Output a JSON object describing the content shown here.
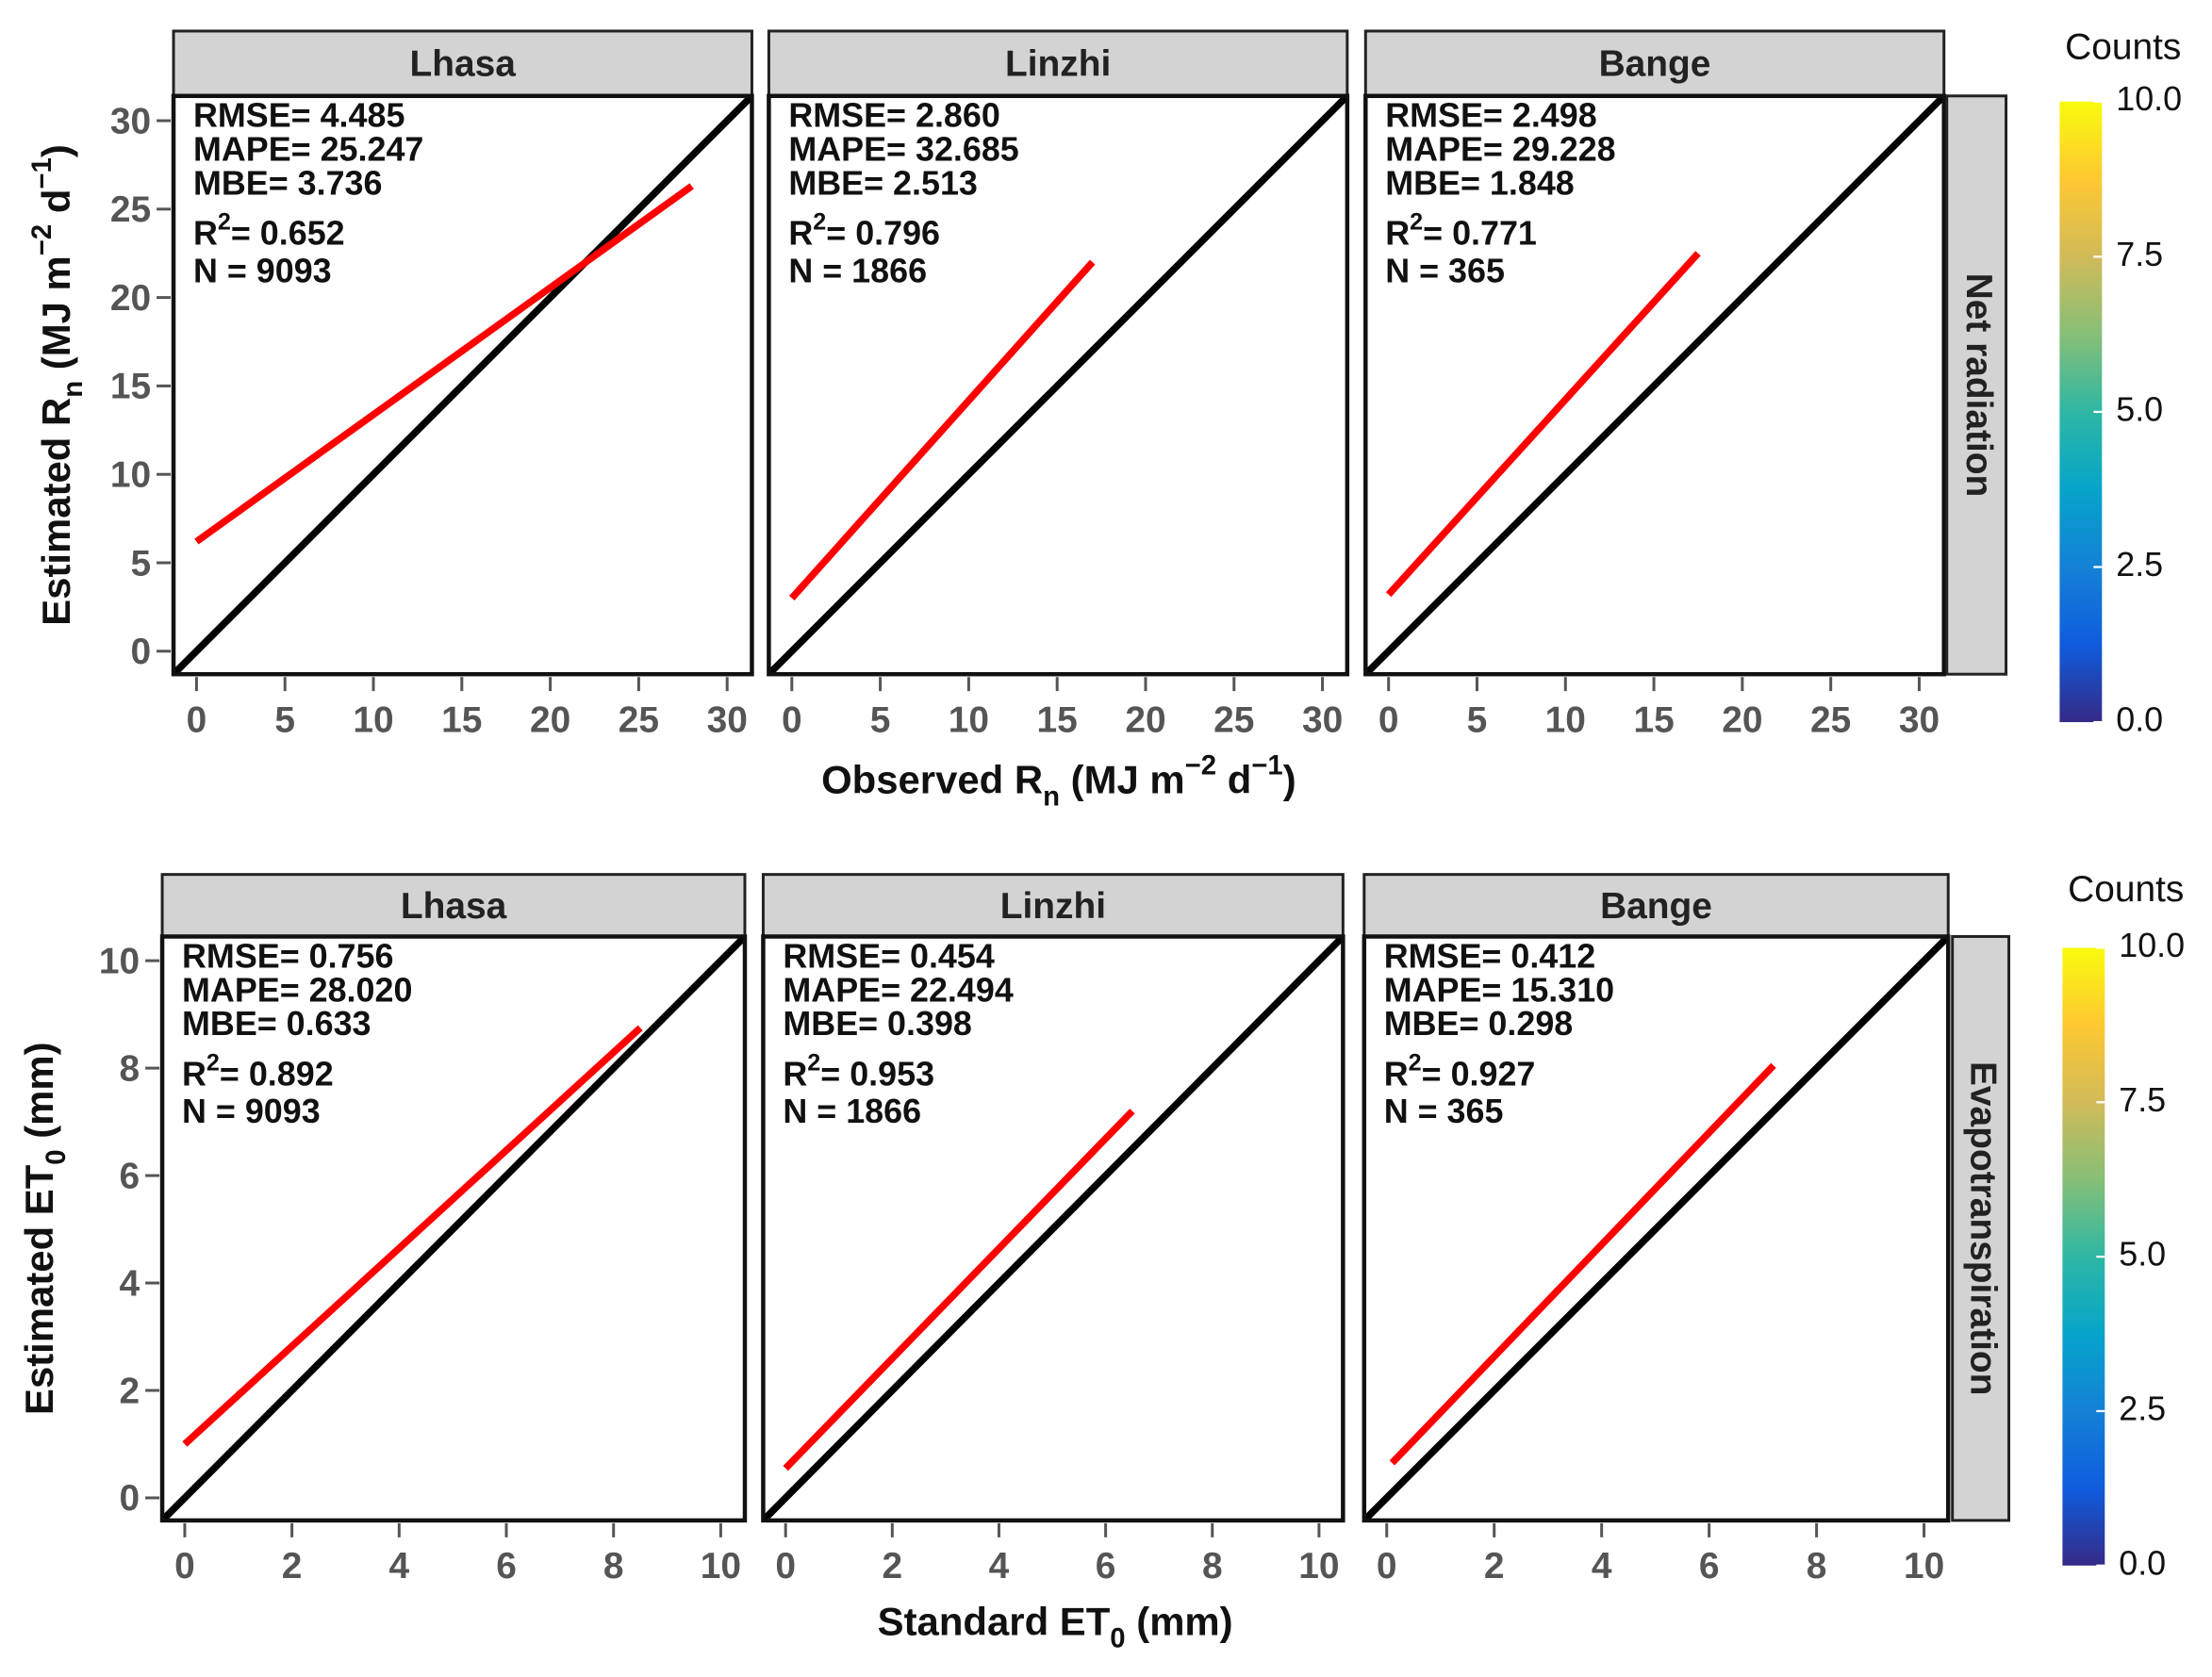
{
  "chart_data": [
    {
      "type": "scatter",
      "row_label": "Net radiation",
      "xlabel": [
        {
          "text": "Observed R"
        },
        {
          "text": "n",
          "shift": "sub"
        },
        {
          "text": " (MJ m"
        },
        {
          "text": "−2",
          "shift": "super"
        },
        {
          "text": " d"
        },
        {
          "text": "−1",
          "shift": "super"
        },
        {
          "text": ")"
        }
      ],
      "ylabel": [
        {
          "text": "Estimated R"
        },
        {
          "text": "n",
          "shift": "sub"
        },
        {
          "text": " (MJ m"
        },
        {
          "text": "−2",
          "shift": "super"
        },
        {
          "text": " d"
        },
        {
          "text": "−1",
          "shift": "super"
        },
        {
          "text": ")"
        }
      ],
      "xlim": [
        -1.3,
        31.4
      ],
      "ylim": [
        -1.3,
        31.4
      ],
      "xticks": [
        0,
        5,
        10,
        15,
        20,
        25,
        30
      ],
      "yticks": [
        0,
        5,
        10,
        15,
        20,
        25,
        30
      ],
      "colorbar": {
        "title": "Counts",
        "lim": [
          0,
          10
        ],
        "ticks": [
          {
            "value": 0,
            "label": "0.0"
          },
          2.5,
          {
            "value": 5,
            "label": "5.0"
          },
          7.5,
          {
            "value": 10,
            "label": "10.0"
          }
        ],
        "colors": [
          "#352a87",
          "#0f5cdd",
          "#1481d6",
          "#06a4ca",
          "#2eb7a4",
          "#87bf77",
          "#d1bb59",
          "#fec832",
          "#f9fb0e"
        ]
      },
      "panels": [
        {
          "title": "Lhasa",
          "annotations": [
            [
              {
                "text": "RMSE= 4.485"
              }
            ],
            [
              {
                "text": "MAPE= 25.247"
              }
            ],
            [
              {
                "text": "MBE= 3.736"
              }
            ],
            [
              {
                "text": "R"
              },
              {
                "text": "2",
                "shift": "super"
              },
              {
                "text": "= 0.652"
              }
            ],
            [
              {
                "text": "N = 9093"
              }
            ]
          ],
          "fit": {
            "x": [
              0,
              28
            ],
            "y": [
              6.2,
              26.3
            ],
            "color": "#ff0000"
          }
        },
        {
          "title": "Linzhi",
          "annotations": [
            [
              {
                "text": "RMSE=  2.860"
              }
            ],
            [
              {
                "text": "MAPE= 32.685"
              }
            ],
            [
              {
                "text": "MBE= 2.513"
              }
            ],
            [
              {
                "text": "R"
              },
              {
                "text": "2",
                "shift": "super"
              },
              {
                "text": "= 0.796"
              }
            ],
            [
              {
                "text": "N = 1866"
              }
            ]
          ],
          "fit": {
            "x": [
              0,
              17
            ],
            "y": [
              3,
              22
            ],
            "color": "#ff0000"
          }
        },
        {
          "title": "Bange",
          "annotations": [
            [
              {
                "text": "RMSE=  2.498"
              }
            ],
            [
              {
                "text": "MAPE= 29.228"
              }
            ],
            [
              {
                "text": "MBE= 1.848"
              }
            ],
            [
              {
                "text": "R"
              },
              {
                "text": "2",
                "shift": "super"
              },
              {
                "text": "= 0.771"
              }
            ],
            [
              {
                "text": "N = 365"
              }
            ]
          ],
          "fit": {
            "x": [
              0,
              17.5
            ],
            "y": [
              3.2,
              22.5
            ],
            "color": "#ff0000"
          }
        }
      ]
    },
    {
      "type": "scatter",
      "row_label": "Evapotranspiration",
      "xlabel": [
        {
          "text": "Standard ET"
        },
        {
          "text": "0",
          "shift": "sub"
        },
        {
          "text": " (mm)"
        }
      ],
      "ylabel": [
        {
          "text": "Estimated ET"
        },
        {
          "text": "0",
          "shift": "sub"
        },
        {
          "text": " (mm)"
        }
      ],
      "xlim": [
        -0.42,
        10.45
      ],
      "ylim": [
        -0.42,
        10.45
      ],
      "xticks": [
        0,
        2,
        4,
        6,
        8,
        10
      ],
      "yticks": [
        0,
        2,
        4,
        6,
        8,
        10
      ],
      "colorbar": {
        "title": "Counts",
        "lim": [
          0,
          10
        ],
        "ticks": [
          {
            "value": 0,
            "label": "0.0"
          },
          2.5,
          {
            "value": 5,
            "label": "5.0"
          },
          7.5,
          {
            "value": 10,
            "label": "10.0"
          }
        ],
        "colors": [
          "#352a87",
          "#0f5cdd",
          "#1481d6",
          "#06a4ca",
          "#2eb7a4",
          "#87bf77",
          "#d1bb59",
          "#fec832",
          "#f9fb0e"
        ]
      },
      "panels": [
        {
          "title": "Lhasa",
          "annotations": [
            [
              {
                "text": "RMSE= 0.756"
              }
            ],
            [
              {
                "text": "MAPE= 28.020"
              }
            ],
            [
              {
                "text": "MBE= 0.633"
              }
            ],
            [
              {
                "text": "R"
              },
              {
                "text": "2",
                "shift": "super"
              },
              {
                "text": "= 0.892"
              }
            ],
            [
              {
                "text": "N = 9093"
              }
            ]
          ],
          "fit": {
            "x": [
              0,
              8.5
            ],
            "y": [
              1,
              8.75
            ],
            "color": "#ff0000"
          }
        },
        {
          "title": "Linzhi",
          "annotations": [
            [
              {
                "text": "RMSE=  0.454"
              }
            ],
            [
              {
                "text": "MAPE= 22.494"
              }
            ],
            [
              {
                "text": "MBE= 0.398"
              }
            ],
            [
              {
                "text": "R"
              },
              {
                "text": "2",
                "shift": "super"
              },
              {
                "text": "= 0.953"
              }
            ],
            [
              {
                "text": "N = 1866"
              }
            ]
          ],
          "fit": {
            "x": [
              0,
              6.5
            ],
            "y": [
              0.55,
              7.2
            ],
            "color": "#ff0000"
          }
        },
        {
          "title": "Bange",
          "annotations": [
            [
              {
                "text": "RMSE=  0.412"
              }
            ],
            [
              {
                "text": "MAPE= 15.310"
              }
            ],
            [
              {
                "text": "MBE= 0.298"
              }
            ],
            [
              {
                "text": "R"
              },
              {
                "text": "2",
                "shift": "super"
              },
              {
                "text": "= 0.927"
              }
            ],
            [
              {
                "text": "N = 365"
              }
            ]
          ],
          "fit": {
            "x": [
              0.1,
              7.2
            ],
            "y": [
              0.65,
              8.05
            ],
            "color": "#ff0000"
          }
        }
      ]
    }
  ]
}
